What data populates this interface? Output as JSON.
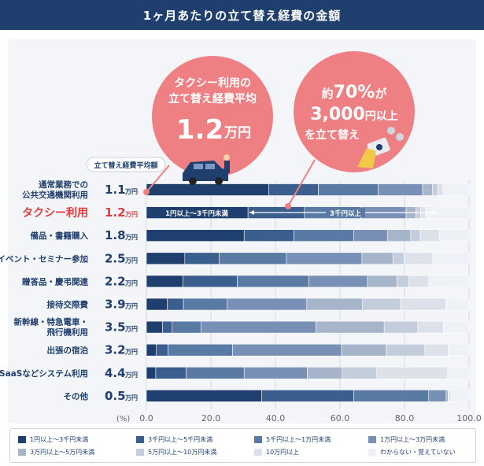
{
  "title": "1ヶ月あたりの立て替え経費の金額",
  "callout_left": {
    "line1": "タクシー利用の",
    "line2": "立て替え経費平均",
    "value": "1.2",
    "unit": "万円"
  },
  "callout_right": {
    "line1_prefix": "約",
    "percent": "70%",
    "line1_suffix": "が",
    "amount": "3,000",
    "amount_unit": "円以上",
    "line3": "を立て替え"
  },
  "avg_header": "立て替え経費平均額",
  "annotation_left": "1円以上～3千円未満",
  "annotation_right": "3千円以上",
  "unit_label": "万円",
  "pct_axis_label": "(%)",
  "colors": [
    "#1f3f6e",
    "#3a5f8f",
    "#587aa3",
    "#7890b5",
    "#a7b5cb",
    "#c4cddb",
    "#dde2ea",
    "#eef1f5"
  ],
  "chart_data": {
    "type": "bar",
    "orientation": "horizontal",
    "stacked": true,
    "xlim": [
      0,
      100
    ],
    "xticks": [
      "0.0",
      "20.0",
      "40.0",
      "60.0",
      "80.0",
      "100.0"
    ],
    "categories": [
      {
        "label": "通常業務での公共交通機関利用",
        "label_lines": [
          "通常業務での",
          "公共交通機関利用"
        ],
        "average": "1.1",
        "highlight": false
      },
      {
        "label": "タクシー利用",
        "label_lines": [
          "タクシー利用"
        ],
        "average": "1.2",
        "highlight": true
      },
      {
        "label": "備品・書籍購入",
        "label_lines": [
          "備品・書籍購入"
        ],
        "average": "1.8",
        "highlight": false
      },
      {
        "label": "イベント・セミナー参加",
        "label_lines": [
          "イベント・セミナー参加"
        ],
        "average": "2.5",
        "highlight": false
      },
      {
        "label": "贈答品・慶弔関連",
        "label_lines": [
          "贈答品・慶弔関連"
        ],
        "average": "2.2",
        "highlight": false
      },
      {
        "label": "接待交際費",
        "label_lines": [
          "接待交際費"
        ],
        "average": "3.9",
        "highlight": false
      },
      {
        "label": "新幹線・特急電車・飛行機利用",
        "label_lines": [
          "新幹線・特急電車・",
          "飛行機利用"
        ],
        "average": "3.5",
        "highlight": false
      },
      {
        "label": "出張の宿泊",
        "label_lines": [
          "出張の宿泊"
        ],
        "average": "3.2",
        "highlight": false
      },
      {
        "label": "SaaSなどシステム利用",
        "label_lines": [
          "SaaSなどシステム利用"
        ],
        "average": "4.4",
        "highlight": false
      },
      {
        "label": "その他",
        "label_lines": [
          "その他"
        ],
        "average": "0.5",
        "highlight": false
      }
    ],
    "series": [
      {
        "name": "1円以上～3千円未満",
        "values": [
          37.9,
          31.5,
          30.3,
          11.9,
          11.3,
          6.5,
          5.0,
          3.0,
          2.9,
          35.7
        ]
      },
      {
        "name": "3千円以上～5千円未満",
        "values": [
          15.4,
          17.5,
          15.4,
          10.7,
          16.9,
          5.0,
          3.0,
          3.7,
          9.4,
          28.6
        ]
      },
      {
        "name": "5千円以上～1万円未満",
        "values": [
          18.5,
          17.5,
          18.6,
          20.8,
          22.1,
          13.6,
          8.9,
          20.0,
          18.0,
          23.2
        ]
      },
      {
        "name": "1万円以上～3万円未満",
        "values": [
          13.8,
          14.0,
          10.4,
          23.4,
          18.2,
          24.6,
          35.6,
          33.8,
          19.6,
          5.4
        ]
      },
      {
        "name": "3万円以上～5万円未満",
        "values": [
          3.1,
          3.0,
          7.2,
          9.6,
          9.2,
          17.3,
          21.2,
          13.9,
          10.8,
          0.6
        ]
      },
      {
        "name": "5万円以上～10万円未満",
        "values": [
          1.6,
          1.5,
          3.0,
          3.5,
          3.6,
          11.8,
          10.4,
          11.9,
          10.7,
          0.2
        ]
      },
      {
        "name": "10万円以上",
        "values": [
          1.6,
          1.6,
          6.0,
          8.9,
          6.2,
          14.0,
          7.9,
          7.2,
          22.0,
          0.7
        ]
      },
      {
        "name": "わからない・覚えていない",
        "values": [
          8.1,
          13.4,
          9.1,
          11.2,
          12.5,
          7.2,
          8.0,
          6.5,
          6.6,
          5.6
        ]
      }
    ]
  }
}
